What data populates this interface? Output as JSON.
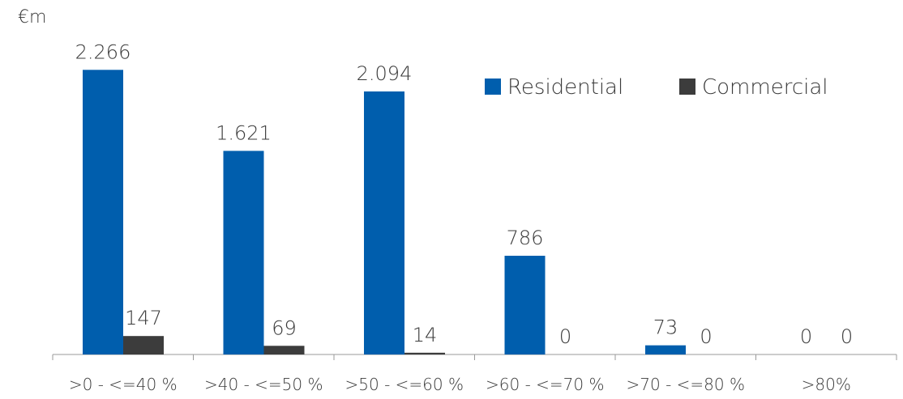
{
  "chart_data": {
    "type": "bar",
    "unit_label": "€m",
    "categories": [
      ">0 - <=40 %",
      ">40 - <=50 %",
      ">50 - <=60 %",
      ">60 - <=70 %",
      ">70 - <=80 %",
      ">80%"
    ],
    "series": [
      {
        "name": "Residential",
        "color": "#005EAD",
        "values": [
          2266,
          1621,
          2094,
          786,
          73,
          0
        ],
        "labels": [
          "2.266",
          "1.621",
          "2.094",
          "786",
          "73",
          "0"
        ]
      },
      {
        "name": "Commercial",
        "color": "#3C3C3C",
        "values": [
          147,
          69,
          14,
          0,
          0,
          0
        ],
        "labels": [
          "147",
          "69",
          "14",
          "0",
          "0",
          "0"
        ]
      }
    ],
    "ylim": [
      0,
      2500
    ],
    "grid": false,
    "legend_position": "top-right"
  }
}
